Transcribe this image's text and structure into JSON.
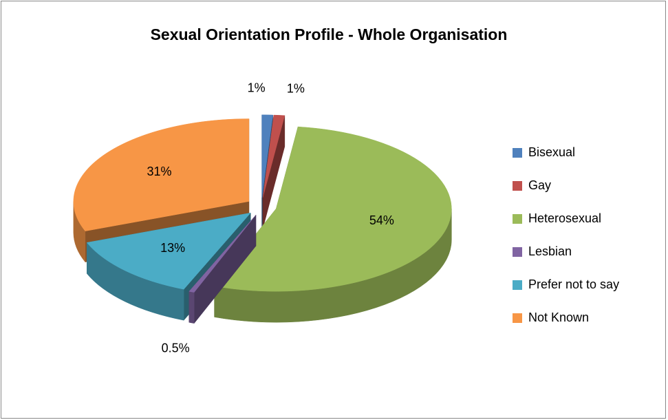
{
  "chart_data": {
    "type": "pie",
    "title": "Sexual Orientation Profile - Whole Organisation",
    "categories": [
      "Bisexual",
      "Gay",
      "Heterosexual",
      "Lesbian",
      "Prefer not to say",
      "Not Known"
    ],
    "values": [
      1,
      1,
      54,
      0.5,
      13,
      31
    ],
    "value_labels": [
      "1%",
      "1%",
      "54%",
      "0.5%",
      "13%",
      "31%"
    ],
    "colors": [
      "#4f81bd",
      "#c0504d",
      "#9bbb59",
      "#8064a2",
      "#4bacc6",
      "#f79646"
    ],
    "legend": "right"
  }
}
